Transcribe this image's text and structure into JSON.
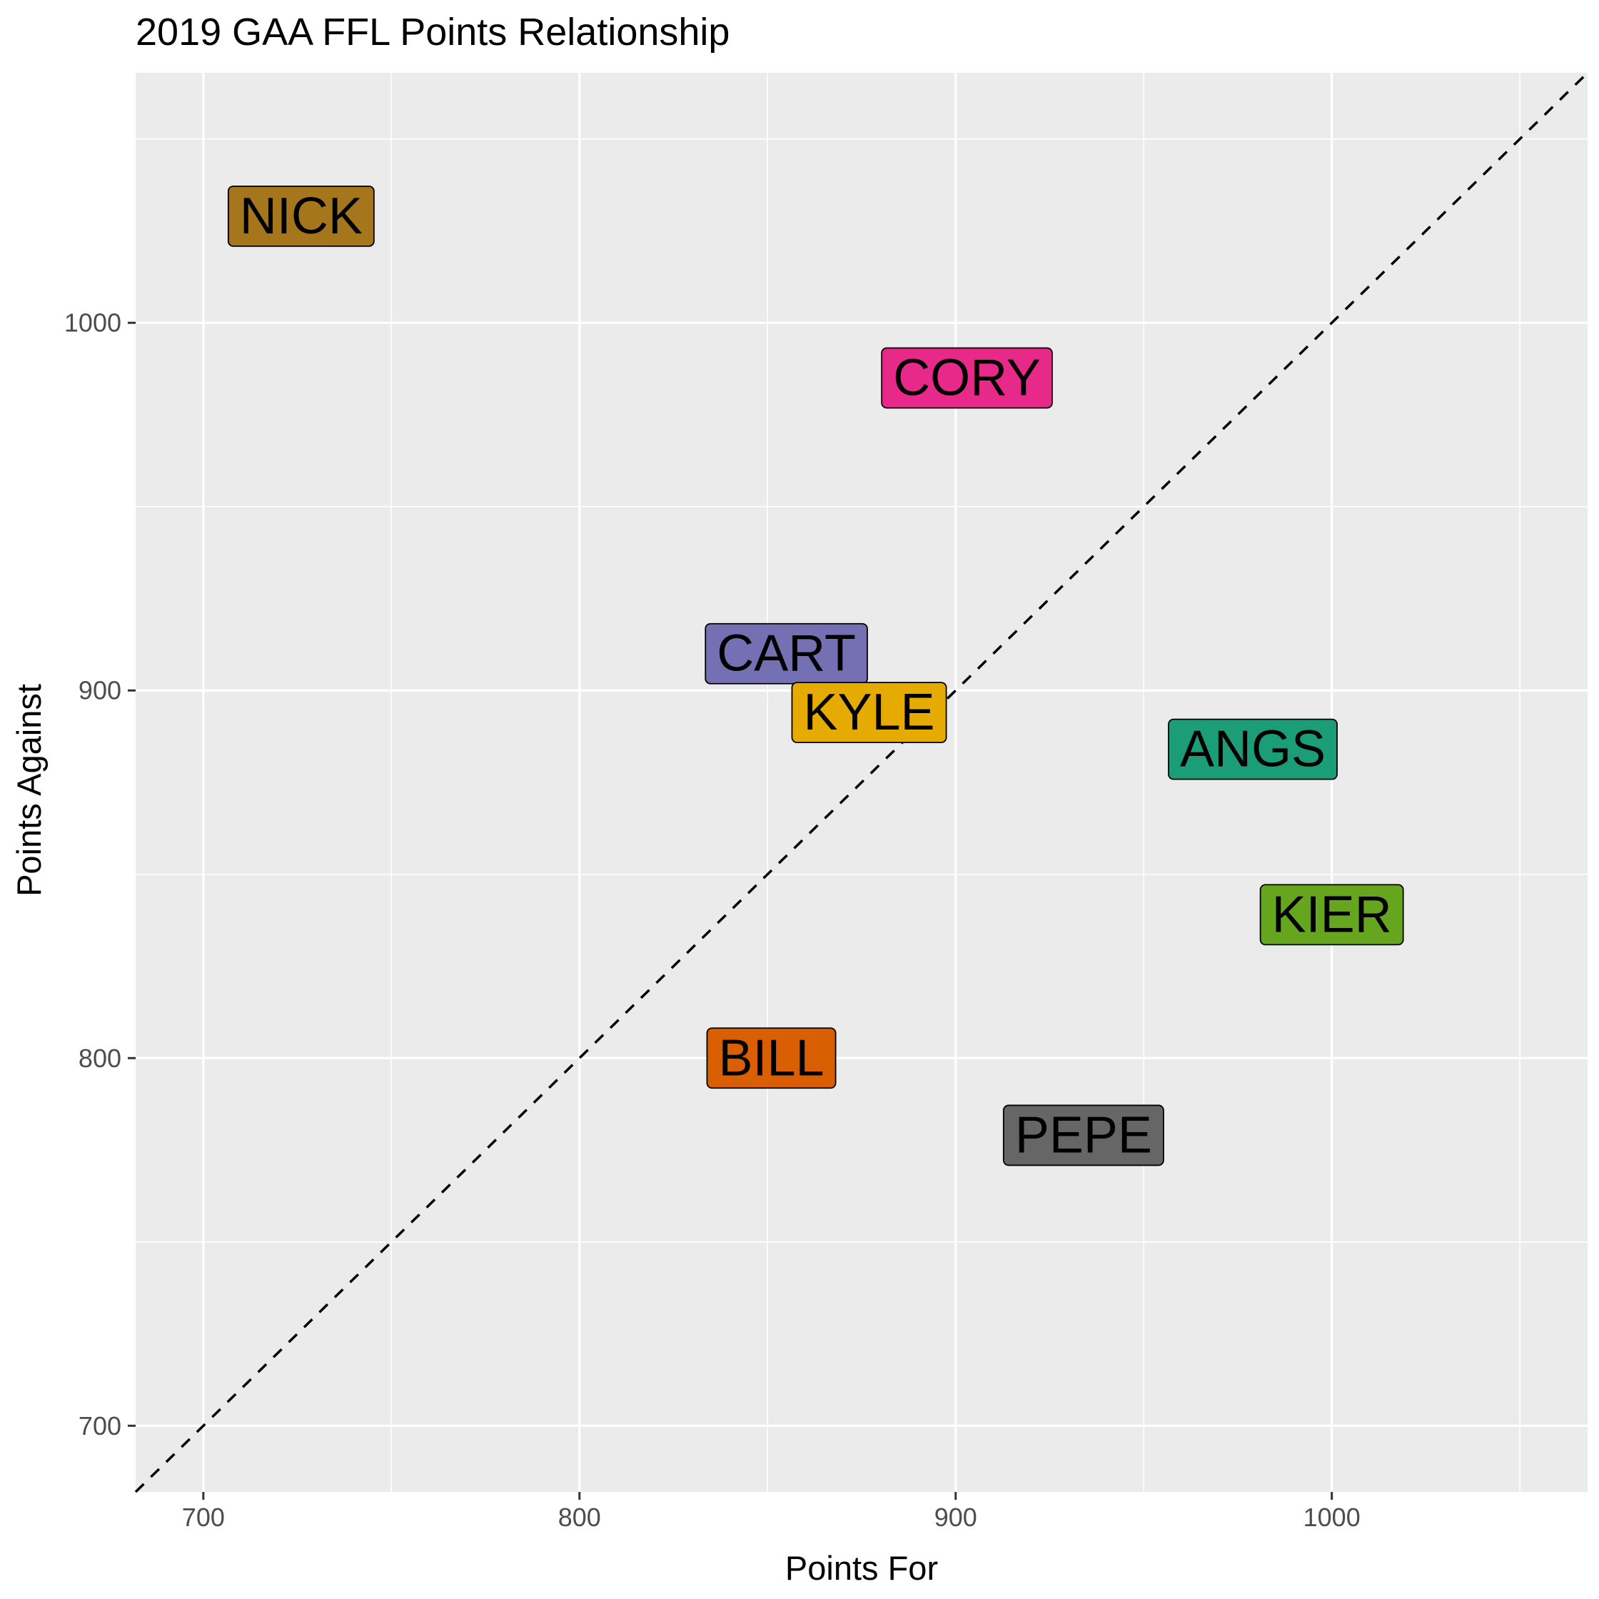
{
  "chart_data": {
    "type": "scatter",
    "title": "2019 GAA FFL Points Relationship",
    "xlabel": "Points For",
    "ylabel": "Points Against",
    "xlim": [
      682,
      1068
    ],
    "ylim": [
      682,
      1068
    ],
    "x_ticks": [
      700,
      800,
      900,
      1000
    ],
    "y_ticks": [
      700,
      800,
      900,
      1000
    ],
    "x_tick_labels": [
      "700",
      "800",
      "900",
      "1000"
    ],
    "y_tick_labels": [
      "700",
      "800",
      "900",
      "1000"
    ],
    "grid": true,
    "legend": "none",
    "reference_line": {
      "style": "dashed",
      "slope": 1,
      "intercept": 0,
      "color": "#000000"
    },
    "points": [
      {
        "label": "NICK",
        "x": 726,
        "y": 1029,
        "color": "#A6761D"
      },
      {
        "label": "CORY",
        "x": 903,
        "y": 985,
        "color": "#E7298A"
      },
      {
        "label": "CART",
        "x": 855,
        "y": 910,
        "color": "#7570B3"
      },
      {
        "label": "KYLE",
        "x": 877,
        "y": 894,
        "color": "#E6AB02"
      },
      {
        "label": "ANGS",
        "x": 979,
        "y": 884,
        "color": "#1B9E77"
      },
      {
        "label": "KIER",
        "x": 1000,
        "y": 839,
        "color": "#66A61E"
      },
      {
        "label": "BILL",
        "x": 851,
        "y": 800,
        "color": "#D95F02"
      },
      {
        "label": "PEPE",
        "x": 934,
        "y": 779,
        "color": "#666666"
      }
    ]
  }
}
